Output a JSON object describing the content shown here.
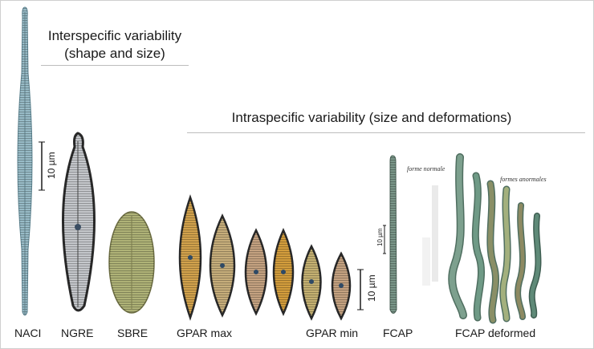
{
  "headings": {
    "interspecific_line1": "Interspecific variability",
    "interspecific_line2": "(shape and size)",
    "intraspecific": "Intraspecific variability (size and deformations)"
  },
  "scale_bars": {
    "large": "10 µm",
    "small": "10 µm",
    "bottom": "10 µm"
  },
  "annotations": {
    "normal_form": "forme normale",
    "abnormal_forms": "formes anormales"
  },
  "labels": {
    "naci": "NACI",
    "ngre": "NGRE",
    "sbre": "SBRE",
    "gpar_max": "GPAR max",
    "gpar_min": "GPAR min",
    "fcap": "FCAP",
    "fcap_deformed": "FCAP deformed"
  },
  "colors": {
    "naci": "#9cc0cc",
    "ngre": "#c9ccd0",
    "sbre": "#b3b77a",
    "gpar": "#d7a64e",
    "fcap": "#7d9a8c",
    "fcap_deformed": "#6e9180"
  }
}
